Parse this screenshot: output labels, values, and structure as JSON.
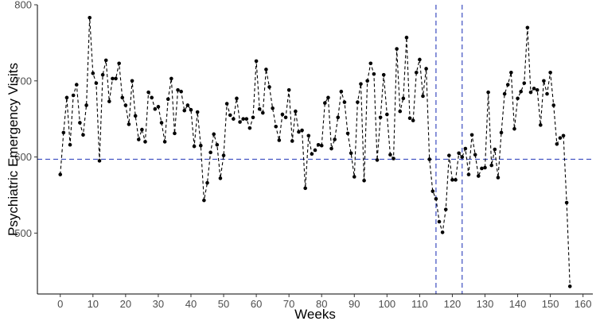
{
  "chart_data": {
    "type": "line",
    "title": "",
    "xlabel": "Weeks",
    "ylabel": "Psychiatric Emergency Visits",
    "xlim": [
      -7,
      163
    ],
    "ylim": [
      420,
      800
    ],
    "x_ticks": [
      0,
      10,
      20,
      30,
      40,
      50,
      60,
      70,
      80,
      90,
      100,
      110,
      120,
      130,
      140,
      150,
      160
    ],
    "y_ticks": [
      500,
      600,
      700,
      800
    ],
    "grid": false,
    "series": [
      {
        "line_style": "dashed",
        "color": "#000000",
        "x": [
          0,
          1,
          2,
          3,
          4,
          5,
          6,
          7,
          8,
          9,
          10,
          11,
          12,
          13,
          14,
          15,
          16,
          17,
          18,
          19,
          20,
          21,
          22,
          23,
          24,
          25,
          26,
          27,
          28,
          29,
          30,
          31,
          32,
          33,
          34,
          35,
          36,
          37,
          38,
          39,
          40,
          41,
          42,
          43,
          44,
          45,
          46,
          47,
          48,
          49,
          50,
          51,
          52,
          53,
          54,
          55,
          56,
          57,
          58,
          59,
          60,
          61,
          62,
          63,
          64,
          65,
          66,
          67,
          68,
          69,
          70,
          71,
          72,
          73,
          74,
          75,
          76,
          77,
          78,
          79,
          80,
          81,
          82,
          83,
          84,
          85,
          86,
          87,
          88,
          89,
          90,
          91,
          92,
          93,
          94,
          95,
          96,
          97,
          98,
          99,
          100,
          101,
          102,
          103,
          104,
          105,
          106,
          107,
          108,
          109,
          110,
          111,
          112,
          113,
          114,
          115,
          116,
          117,
          118,
          119,
          120,
          121,
          122,
          123,
          124,
          125,
          126,
          127,
          128,
          129,
          130,
          131,
          132,
          133,
          134,
          135,
          136,
          137,
          138,
          139,
          140,
          141,
          142,
          143,
          144,
          145,
          146,
          147,
          148,
          149,
          150,
          151,
          152,
          153,
          154,
          155,
          156
        ],
        "y": [
          577,
          632,
          678,
          616,
          681,
          695,
          645,
          629,
          668,
          783,
          710,
          697,
          595,
          708,
          727,
          673,
          703,
          703,
          723,
          678,
          668,
          643,
          700,
          654,
          623,
          636,
          620,
          685,
          678,
          663,
          666,
          645,
          620,
          676,
          703,
          631,
          688,
          686,
          661,
          668,
          662,
          614,
          659,
          615,
          543,
          566,
          606,
          630,
          616,
          572,
          602,
          670,
          655,
          650,
          677,
          646,
          650,
          650,
          638,
          652,
          726,
          663,
          658,
          715,
          692,
          664,
          640,
          622,
          656,
          652,
          688,
          621,
          660,
          633,
          635,
          559,
          628,
          604,
          609,
          616,
          615,
          671,
          678,
          611,
          623,
          652,
          686,
          672,
          631,
          605,
          574,
          672,
          696,
          569,
          700,
          723,
          709,
          596,
          652,
          708,
          656,
          603,
          598,
          742,
          660,
          677,
          757,
          651,
          648,
          711,
          728,
          680,
          716,
          597,
          555,
          545,
          515,
          501,
          531,
          602,
          570,
          570,
          605,
          600,
          611,
          577,
          629,
          603,
          575,
          585,
          586,
          685,
          589,
          610,
          573,
          632,
          683,
          695,
          711,
          637,
          677,
          686,
          697,
          770,
          685,
          690,
          688,
          642,
          700,
          683,
          711,
          668,
          617,
          625,
          628,
          540,
          430
        ]
      }
    ],
    "reference_lines": [
      {
        "orientation": "horizontal",
        "value": 597,
        "style": "dashed",
        "color": "#3b4cc0"
      },
      {
        "orientation": "vertical",
        "value": 115,
        "style": "dashed",
        "color": "#3b4cc0"
      },
      {
        "orientation": "vertical",
        "value": 123,
        "style": "dashed",
        "color": "#3b4cc0"
      }
    ],
    "axis_color": "#000000",
    "point_color": "#000000"
  }
}
